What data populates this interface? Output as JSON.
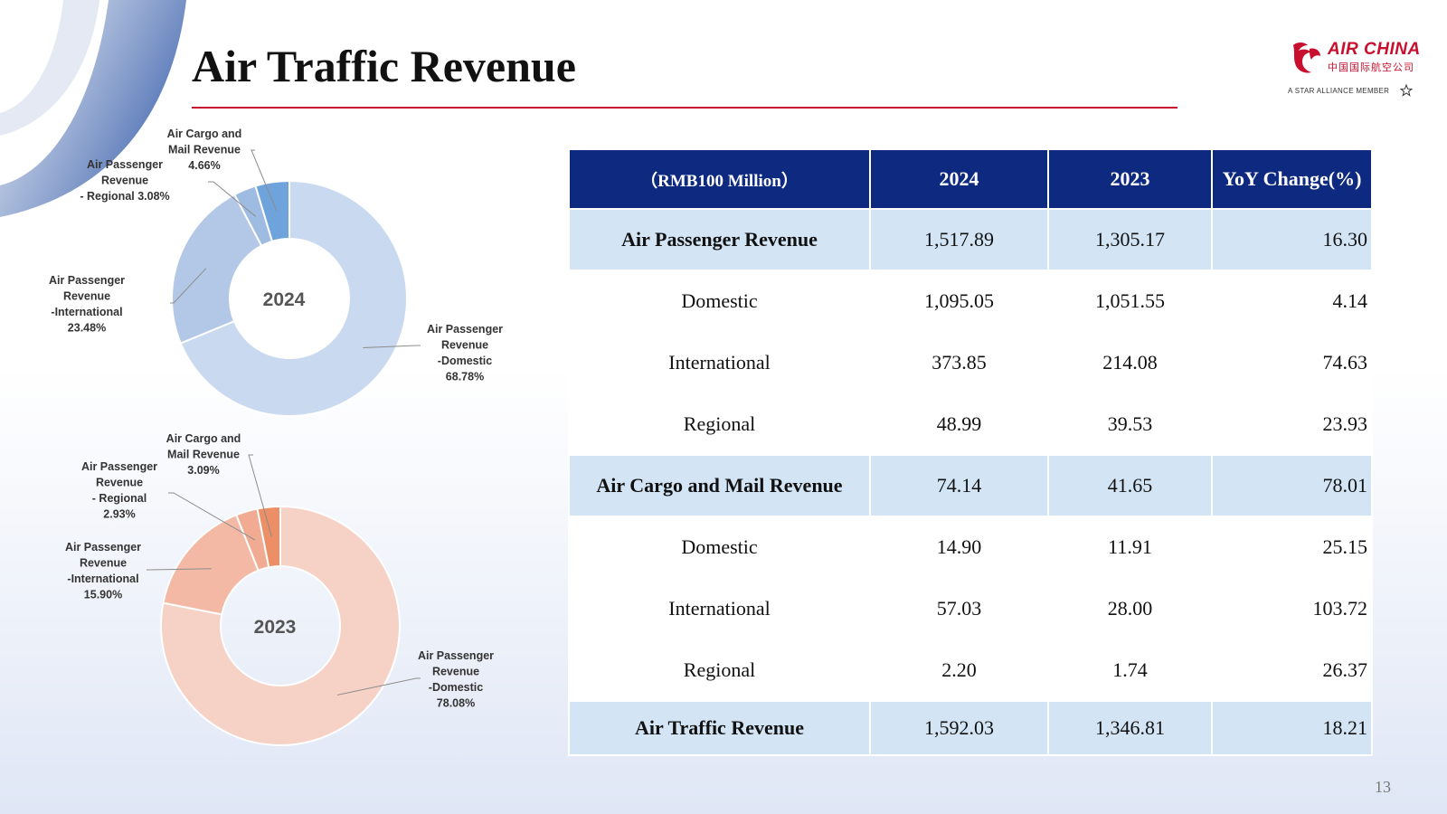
{
  "title": "Air Traffic Revenue",
  "logo": {
    "name": "AIR CHINA",
    "chinese": "中国国际航空公司",
    "alliance": "A STAR ALLIANCE MEMBER"
  },
  "page_number": "13",
  "colors": {
    "header_bg": "#0d2a80",
    "highlight_row": "#d3e5f5",
    "title_rule": "#c8102e",
    "brand_red": "#c8102e",
    "pie_2024": [
      "#c9d9ef",
      "#b3c8e6",
      "#9ebbe2",
      "#6fa3dc"
    ],
    "pie_2023": [
      "#f6d2c6",
      "#f3b9a5",
      "#f2ab93",
      "#ec8f66"
    ]
  },
  "table": {
    "headers": [
      "（RMB100 Million）",
      "2024",
      "2023",
      "YoY Change(%)"
    ],
    "rows": [
      {
        "label": "Air Passenger Revenue",
        "v2024": "1,517.89",
        "v2023": "1,305.17",
        "yoy": "16.30",
        "style": "hl"
      },
      {
        "label": "Domestic",
        "v2024": "1,095.05",
        "v2023": "1,051.55",
        "yoy": "4.14",
        "style": "sub"
      },
      {
        "label": "International",
        "v2024": "373.85",
        "v2023": "214.08",
        "yoy": "74.63",
        "style": "sub"
      },
      {
        "label": "Regional",
        "v2024": "48.99",
        "v2023": "39.53",
        "yoy": "23.93",
        "style": "sub"
      },
      {
        "label": "Air Cargo and Mail Revenue",
        "v2024": "74.14",
        "v2023": "41.65",
        "yoy": "78.01",
        "style": "hl"
      },
      {
        "label": "Domestic",
        "v2024": "14.90",
        "v2023": "11.91",
        "yoy": "25.15",
        "style": "sub"
      },
      {
        "label": "International",
        "v2024": "57.03",
        "v2023": "28.00",
        "yoy": "103.72",
        "style": "sub"
      },
      {
        "label": "Regional",
        "v2024": "2.20",
        "v2023": "1.74",
        "yoy": "26.37",
        "style": "sub"
      },
      {
        "label": "Air Traffic Revenue",
        "v2024": "1,592.03",
        "v2023": "1,346.81",
        "yoy": "18.21",
        "style": "hl total"
      }
    ]
  },
  "chart_data": [
    {
      "type": "pie",
      "center_label": "2024",
      "slices": [
        {
          "value": 68.78,
          "label": [
            "Air Passenger",
            "Revenue",
            "-Domestic",
            "68.78%"
          ]
        },
        {
          "value": 23.48,
          "label": [
            "Air Passenger",
            "Revenue",
            "-International",
            "23.48%"
          ]
        },
        {
          "value": 3.08,
          "label": [
            "Air Passenger",
            "Revenue",
            "- Regional 3.08%"
          ]
        },
        {
          "value": 4.66,
          "label": [
            "Air Cargo and",
            "Mail Revenue",
            "4.66%"
          ]
        }
      ]
    },
    {
      "type": "pie",
      "center_label": "2023",
      "slices": [
        {
          "value": 78.08,
          "label": [
            "Air Passenger",
            "Revenue",
            "-Domestic",
            "78.08%"
          ]
        },
        {
          "value": 15.9,
          "label": [
            "Air Passenger",
            "Revenue",
            "-International",
            "15.90%"
          ]
        },
        {
          "value": 2.93,
          "label": [
            "Air Passenger",
            "Revenue",
            "- Regional",
            "2.93%"
          ]
        },
        {
          "value": 3.09,
          "label": [
            "Air Cargo and",
            "Mail Revenue",
            "3.09%"
          ]
        }
      ]
    }
  ]
}
